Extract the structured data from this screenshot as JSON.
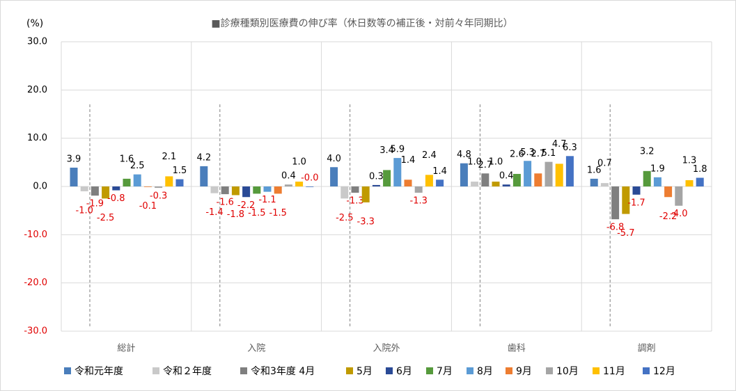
{
  "chart_data": {
    "type": "bar",
    "title": "■診療種類別医療費の伸び率（休日数等の補正後・対前々年同期比）",
    "y_unit_label": "(%)",
    "categories": [
      "総計",
      "入院",
      "入院外",
      "歯科",
      "調剤"
    ],
    "ylim": [
      -30,
      30
    ],
    "yticks": [
      {
        "value": -30,
        "label": "-30.0"
      },
      {
        "value": -20,
        "label": "-20.0"
      },
      {
        "value": -10,
        "label": "-10.0"
      },
      {
        "value": 0,
        "label": "0.0"
      },
      {
        "value": 10,
        "label": "10.0"
      },
      {
        "value": 20,
        "label": "20.0"
      },
      {
        "value": 30,
        "label": "30.0"
      }
    ],
    "grid": true,
    "legend": "bottom",
    "series": [
      {
        "name": "令和元年度",
        "color": "#4a7ebb",
        "values": [
          3.9,
          4.2,
          4.0,
          4.8,
          1.6
        ],
        "value_labels": [
          "3.9",
          "4.2",
          "4.0",
          "4.8",
          "1.6"
        ]
      },
      {
        "name": "令和２年度",
        "color": "#c9c9c9",
        "values": [
          -1.0,
          -1.4,
          -2.5,
          1.0,
          0.7
        ],
        "value_labels": [
          "-1.0",
          "-1.4",
          "-2.5",
          "1.0",
          "0.7"
        ]
      },
      {
        "name": "令和3年度 4月",
        "color": "#7f7f7f",
        "values": [
          -1.9,
          -1.6,
          -1.3,
          2.7,
          -6.8
        ],
        "value_labels": [
          "-1.9",
          "-1.6",
          "-1.3",
          "2.7",
          "-6.8"
        ]
      },
      {
        "name": "5月",
        "color": "#c09a00",
        "values": [
          -2.5,
          -1.8,
          -3.3,
          1.0,
          -5.7
        ],
        "value_labels": [
          "-2.5",
          "-1.8",
          "-3.3",
          "1.0",
          "-5.7"
        ]
      },
      {
        "name": "6月",
        "color": "#2a4a96",
        "values": [
          -0.8,
          -2.2,
          0.3,
          0.4,
          -1.7
        ],
        "value_labels": [
          "-0.8",
          "-2.2",
          "0.3",
          "0.4",
          "-1.7"
        ]
      },
      {
        "name": "7月",
        "color": "#569a3c",
        "values": [
          1.6,
          -1.5,
          3.4,
          2.6,
          3.2
        ],
        "value_labels": [
          "1.6",
          "-1.5",
          "3.4",
          "2.6",
          "3.2"
        ]
      },
      {
        "name": "8月",
        "color": "#5b9bd5",
        "values": [
          2.5,
          -1.1,
          5.9,
          5.3,
          1.9
        ],
        "value_labels": [
          "2.5",
          "-1.1",
          "5.9",
          "5.3",
          "1.9"
        ]
      },
      {
        "name": "9月",
        "color": "#ed7d31",
        "values": [
          -0.1,
          -1.5,
          1.4,
          2.7,
          -2.2
        ],
        "value_labels": [
          "-0.1",
          "-1.5",
          "1.4",
          "2.7",
          "-2.2"
        ]
      },
      {
        "name": "10月",
        "color": "#a5a5a5",
        "values": [
          -0.3,
          0.4,
          -1.3,
          5.1,
          -4.0
        ],
        "value_labels": [
          "-0.3",
          "0.4",
          "-1.3",
          "5.1",
          "-4.0"
        ]
      },
      {
        "name": "11月",
        "color": "#ffc000",
        "values": [
          2.1,
          1.0,
          2.4,
          4.7,
          1.3
        ],
        "value_labels": [
          "2.1",
          "1.0",
          "2.4",
          "4.7",
          "1.3"
        ]
      },
      {
        "name": "12月",
        "color": "#4472c4",
        "values": [
          1.5,
          -0.0,
          1.4,
          6.3,
          1.8
        ],
        "value_labels": [
          "1.5",
          "-0.0",
          "1.4",
          "6.3",
          "1.8"
        ]
      }
    ]
  }
}
